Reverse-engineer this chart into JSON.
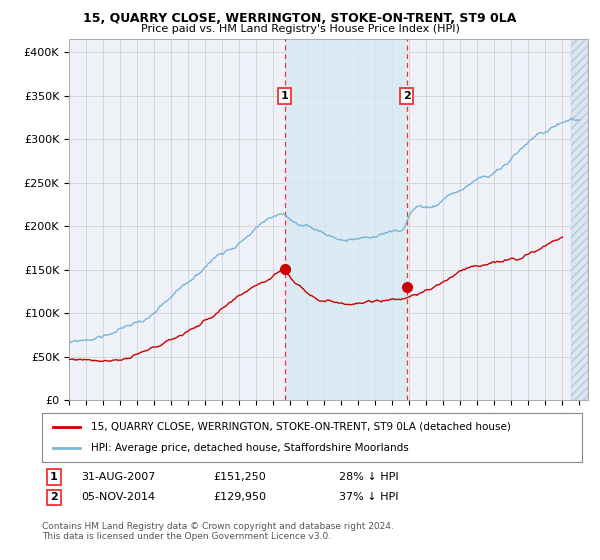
{
  "title": "15, QUARRY CLOSE, WERRINGTON, STOKE-ON-TRENT, ST9 0LA",
  "subtitle": "Price paid vs. HM Land Registry's House Price Index (HPI)",
  "ytick_labels": [
    "£0",
    "£50K",
    "£100K",
    "£150K",
    "£200K",
    "£250K",
    "£300K",
    "£350K",
    "£400K"
  ],
  "yticks": [
    0,
    50000,
    100000,
    150000,
    200000,
    250000,
    300000,
    350000,
    400000
  ],
  "ylim": [
    0,
    415000
  ],
  "xlim_start": 1995.0,
  "xlim_end": 2025.5,
  "marker1_x": 2007.667,
  "marker1_y": 151250,
  "marker2_x": 2014.846,
  "marker2_y": 129950,
  "legend_line1": "15, QUARRY CLOSE, WERRINGTON, STOKE-ON-TRENT, ST9 0LA (detached house)",
  "legend_line2": "HPI: Average price, detached house, Staffordshire Moorlands",
  "ann1_date": "31-AUG-2007",
  "ann1_price": "£151,250",
  "ann1_hpi": "28% ↓ HPI",
  "ann2_date": "05-NOV-2014",
  "ann2_price": "£129,950",
  "ann2_hpi": "37% ↓ HPI",
  "footer": "Contains HM Land Registry data © Crown copyright and database right 2024.\nThis data is licensed under the Open Government Licence v3.0.",
  "hpi_color": "#7ab4d8",
  "price_color": "#cc0000",
  "vline_color": "#ee3333",
  "grid_color": "#cccccc",
  "background_color": "#ffffff",
  "plot_bg_color": "#eef2f8",
  "shade_color": "#d8e8f4",
  "hatch_bg_color": "#dce6f0"
}
